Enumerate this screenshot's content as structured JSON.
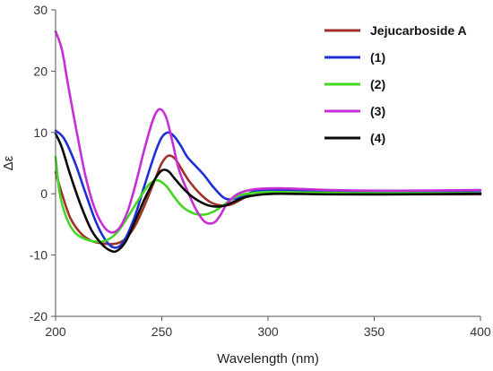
{
  "chart_data": {
    "type": "line",
    "title": "",
    "xlabel": "Wavelength (nm)",
    "ylabel": "Δε",
    "xlim": [
      200,
      400
    ],
    "ylim": [
      -20,
      30
    ],
    "xticks": [
      200,
      250,
      300,
      350,
      400
    ],
    "yticks": [
      -20,
      -10,
      0,
      10,
      20,
      30
    ],
    "grid": false,
    "legend_position": "top-right",
    "series": [
      {
        "name": "Jejucarboside A",
        "color": "#a0302a",
        "x": [
          200,
          203,
          207,
          212,
          217,
          222,
          227,
          232,
          237,
          242,
          247,
          250,
          253,
          256,
          259,
          263,
          268,
          273,
          278,
          283,
          288,
          293,
          298,
          305,
          320,
          340,
          360,
          380,
          400
        ],
        "y": [
          3.5,
          0,
          -4.0,
          -6.5,
          -7.7,
          -8.1,
          -8.2,
          -7.6,
          -5.5,
          -1.8,
          2.5,
          5.0,
          6.2,
          5.8,
          4.2,
          2.0,
          0.0,
          -1.4,
          -1.9,
          -1.7,
          -0.8,
          0.3,
          0.6,
          0.3,
          0.0,
          -0.1,
          -0.1,
          -0.1,
          -0.1
        ]
      },
      {
        "name": "(1)",
        "color": "#1f2fd6",
        "x": [
          200,
          204,
          209,
          214,
          219,
          224,
          228,
          232,
          237,
          242,
          247,
          250,
          253,
          256,
          259,
          262,
          266,
          270,
          274,
          279,
          283,
          288,
          295,
          310,
          330,
          350,
          370,
          400
        ],
        "y": [
          10.3,
          9.0,
          5.2,
          0.2,
          -4.6,
          -7.8,
          -8.8,
          -7.8,
          -4.0,
          1.5,
          6.8,
          9.2,
          10.0,
          9.3,
          7.8,
          6.0,
          4.5,
          3.0,
          1.2,
          -0.6,
          -0.9,
          -0.4,
          0.5,
          0.6,
          0.4,
          0.3,
          0.3,
          0.2
        ]
      },
      {
        "name": "(2)",
        "color": "#44d623",
        "x": [
          200,
          202,
          205,
          209,
          214,
          219,
          224,
          229,
          234,
          239,
          244,
          248,
          252,
          256,
          260,
          265,
          270,
          275,
          280,
          285,
          290,
          300,
          320,
          340,
          360,
          380,
          400
        ],
        "y": [
          6.0,
          0.0,
          -3.8,
          -6.3,
          -7.4,
          -7.8,
          -7.6,
          -6.3,
          -3.8,
          -1.0,
          1.5,
          2.2,
          1.3,
          -0.6,
          -2.2,
          -3.2,
          -3.4,
          -2.8,
          -1.6,
          -0.5,
          0.0,
          0.3,
          0.2,
          0.1,
          0.1,
          0.1,
          0.1
        ]
      },
      {
        "name": "(3)",
        "color": "#c72ed6",
        "x": [
          200,
          203,
          206,
          210,
          214,
          218,
          222,
          226,
          230,
          234,
          238,
          242,
          246,
          249,
          252,
          255,
          258,
          262,
          266,
          270,
          274,
          277,
          281,
          286,
          293,
          305,
          330,
          360,
          400
        ],
        "y": [
          26.5,
          23.5,
          17.5,
          10.0,
          3.0,
          -2.0,
          -5.0,
          -6.3,
          -5.6,
          -2.8,
          2.0,
          7.5,
          12.2,
          13.8,
          12.5,
          8.5,
          4.0,
          0.5,
          -2.5,
          -4.5,
          -4.8,
          -3.8,
          -1.5,
          0.0,
          0.7,
          0.9,
          0.6,
          0.5,
          0.6
        ]
      },
      {
        "name": "(4)",
        "color": "#0a0a0a",
        "x": [
          200,
          203,
          207,
          212,
          217,
          222,
          226,
          229,
          233,
          237,
          242,
          247,
          250,
          253,
          256,
          260,
          264,
          268,
          272,
          276,
          280,
          284,
          289,
          295,
          305,
          330,
          360,
          400
        ],
        "y": [
          9.8,
          7.5,
          3.0,
          -2.0,
          -6.0,
          -8.3,
          -9.3,
          -9.3,
          -7.8,
          -4.8,
          -0.8,
          2.5,
          3.8,
          3.7,
          2.5,
          0.9,
          -0.4,
          -1.3,
          -1.9,
          -2.1,
          -1.9,
          -1.3,
          -0.6,
          -0.2,
          0.0,
          -0.1,
          -0.1,
          0.0
        ]
      }
    ]
  }
}
